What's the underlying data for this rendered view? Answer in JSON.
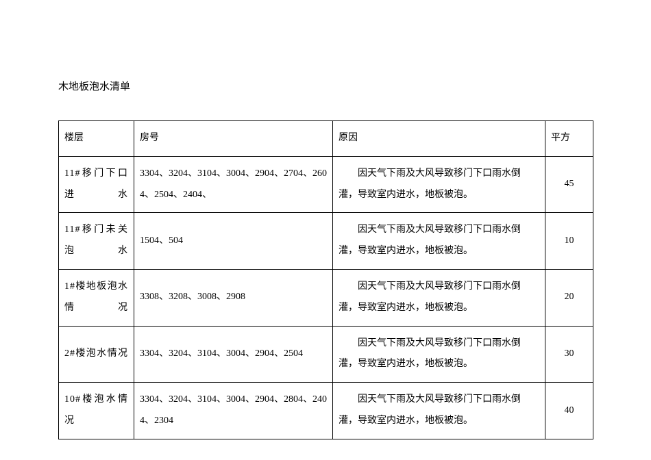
{
  "title": "木地板泡水清单",
  "table": {
    "columns": [
      "楼层",
      "房号",
      "原因",
      "平方"
    ],
    "rows": [
      {
        "floor": "11#移门下口进水",
        "room": "3304、3204、3104、3004、2904、2704、2604、2504、2404、",
        "reason": "因天气下雨及大风导致移门下口雨水倒灌，导致室内进水，地板被泡。",
        "sqm": "45"
      },
      {
        "floor": "11#移门未关泡水",
        "room": "1504、504",
        "reason": "因天气下雨及大风导致移门下口雨水倒灌，导致室内进水，地板被泡。",
        "sqm": "10"
      },
      {
        "floor": "1#楼地板泡水情况",
        "room": "3308、3208、3008、2908",
        "reason": "因天气下雨及大风导致移门下口雨水倒灌，导致室内进水，地板被泡。",
        "sqm": "20"
      },
      {
        "floor": "2#楼泡水情况",
        "room": "3304、3204、3104、3004、2904、2504",
        "reason": "因天气下雨及大风导致移门下口雨水倒灌，导致室内进水，地板被泡。",
        "sqm": "30"
      },
      {
        "floor": "10#楼泡水情况",
        "room": "3304、3204、3104、3004、2904、2804、2404、2304",
        "reason": "因天气下雨及大风导致移门下口雨水倒灌，导致室内进水，地板被泡。",
        "sqm": "40"
      }
    ]
  }
}
